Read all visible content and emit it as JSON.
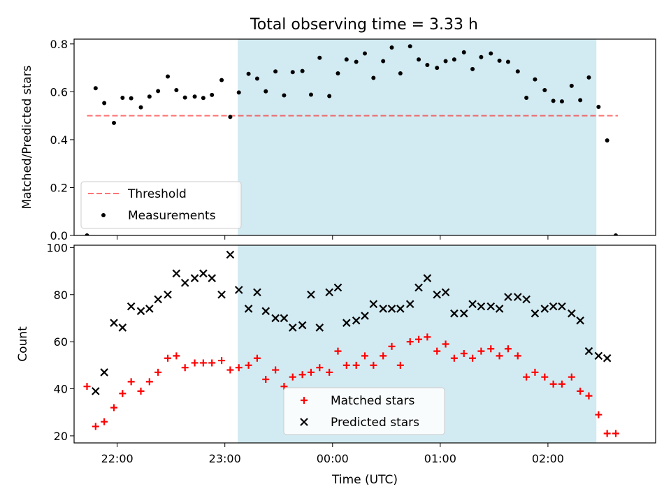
{
  "title": "Total observing time = 3.33 h",
  "colors": {
    "shade": "#add8e6",
    "threshold": "#ff0000",
    "matched": "#ff0000",
    "predicted": "#000000",
    "measurement": "#000000"
  },
  "chart_data": [
    {
      "type": "scatter",
      "panel": "top",
      "ylabel": "Matched/Predicted stars",
      "xlabel": "",
      "xlim": [
        21.6,
        27.0
      ],
      "ylim": [
        0,
        0.82
      ],
      "yticks": [
        0.0,
        0.2,
        0.4,
        0.6,
        0.8
      ],
      "ytick_labels": [
        "0.0",
        "0.2",
        "0.4",
        "0.6",
        "0.8"
      ],
      "shaded_interval": [
        23.12,
        26.45
      ],
      "threshold": {
        "name": "Threshold",
        "y": 0.5,
        "x": [
          21.72,
          26.65
        ]
      },
      "legend": {
        "placement": "lower-left",
        "entries": [
          "Threshold",
          "Measurements"
        ]
      },
      "series": [
        {
          "name": "Measurements",
          "marker": "dot",
          "x": [
            21.72,
            21.8,
            21.88,
            21.97,
            22.05,
            22.13,
            22.22,
            22.3,
            22.38,
            22.47,
            22.55,
            22.63,
            22.72,
            22.8,
            22.88,
            22.97,
            23.05,
            23.13,
            23.22,
            23.3,
            23.38,
            23.47,
            23.55,
            23.63,
            23.72,
            23.8,
            23.88,
            23.97,
            24.05,
            24.13,
            24.22,
            24.3,
            24.38,
            24.47,
            24.55,
            24.63,
            24.72,
            24.8,
            24.88,
            24.97,
            25.05,
            25.13,
            25.22,
            25.3,
            25.38,
            25.47,
            25.55,
            25.63,
            25.72,
            25.8,
            25.88,
            25.97,
            26.05,
            26.13,
            26.22,
            26.3,
            26.38,
            26.47,
            26.55,
            26.63
          ],
          "y": [
            0.0,
            0.615,
            0.553,
            0.47,
            0.575,
            0.573,
            0.535,
            0.58,
            0.603,
            0.664,
            0.607,
            0.576,
            0.58,
            0.574,
            0.587,
            0.649,
            0.495,
            0.597,
            0.675,
            0.655,
            0.602,
            0.685,
            0.585,
            0.682,
            0.687,
            0.588,
            0.742,
            0.582,
            0.677,
            0.735,
            0.725,
            0.76,
            0.658,
            0.728,
            0.785,
            0.677,
            0.79,
            0.735,
            0.712,
            0.7,
            0.728,
            0.735,
            0.765,
            0.695,
            0.745,
            0.76,
            0.73,
            0.725,
            0.685,
            0.575,
            0.652,
            0.607,
            0.562,
            0.56,
            0.625,
            0.565,
            0.66,
            0.537,
            0.397,
            0.0
          ]
        }
      ]
    },
    {
      "type": "scatter",
      "panel": "bottom",
      "ylabel": "Count",
      "xlabel": "Time (UTC)",
      "xlim": [
        21.6,
        27.0
      ],
      "ylim": [
        17,
        101
      ],
      "yticks": [
        20,
        40,
        60,
        80,
        100
      ],
      "ytick_labels": [
        "20",
        "40",
        "60",
        "80",
        "100"
      ],
      "xticks": [
        22,
        23,
        24,
        25,
        26
      ],
      "xtick_labels": [
        "22:00",
        "23:00",
        "00:00",
        "01:00",
        "02:00"
      ],
      "shaded_interval": [
        23.12,
        26.45
      ],
      "legend": {
        "placement": "lower-center",
        "entries": [
          "Matched stars",
          "Predicted stars"
        ]
      },
      "series": [
        {
          "name": "Matched stars",
          "marker": "plus",
          "x": [
            21.72,
            21.8,
            21.88,
            21.97,
            22.05,
            22.13,
            22.22,
            22.3,
            22.38,
            22.47,
            22.55,
            22.63,
            22.72,
            22.8,
            22.88,
            22.97,
            23.05,
            23.13,
            23.22,
            23.3,
            23.38,
            23.47,
            23.55,
            23.63,
            23.72,
            23.8,
            23.88,
            23.97,
            24.05,
            24.13,
            24.22,
            24.3,
            24.38,
            24.47,
            24.55,
            24.63,
            24.72,
            24.8,
            24.88,
            24.97,
            25.05,
            25.13,
            25.22,
            25.3,
            25.38,
            25.47,
            25.55,
            25.63,
            25.72,
            25.8,
            25.88,
            25.97,
            26.05,
            26.13,
            26.22,
            26.3,
            26.38,
            26.47,
            26.55,
            26.63
          ],
          "y": [
            41,
            24,
            26,
            32,
            38,
            43,
            39,
            43,
            47,
            53,
            54,
            49,
            51,
            51,
            51,
            52,
            48,
            49,
            50,
            53,
            44,
            48,
            41,
            45,
            46,
            47,
            49,
            47,
            56,
            50,
            50,
            54,
            50,
            54,
            58,
            50,
            60,
            61,
            62,
            56,
            59,
            53,
            55,
            53,
            56,
            57,
            54,
            57,
            54,
            45,
            47,
            45,
            42,
            42,
            45,
            39,
            37,
            29,
            21,
            21
          ]
        },
        {
          "name": "Predicted stars",
          "marker": "x",
          "x": [
            21.8,
            21.88,
            21.97,
            22.05,
            22.13,
            22.22,
            22.3,
            22.38,
            22.47,
            22.55,
            22.63,
            22.72,
            22.8,
            22.88,
            22.97,
            23.05,
            23.13,
            23.22,
            23.3,
            23.38,
            23.47,
            23.55,
            23.63,
            23.72,
            23.8,
            23.88,
            23.97,
            24.05,
            24.13,
            24.22,
            24.3,
            24.38,
            24.47,
            24.55,
            24.63,
            24.72,
            24.8,
            24.88,
            24.97,
            25.05,
            25.13,
            25.22,
            25.3,
            25.38,
            25.47,
            25.55,
            25.63,
            25.72,
            25.8,
            25.88,
            25.97,
            26.05,
            26.13,
            26.22,
            26.3,
            26.38,
            26.47,
            26.55
          ],
          "y": [
            39,
            47,
            68,
            66,
            75,
            73,
            74,
            78,
            80,
            89,
            85,
            87,
            89,
            87,
            80,
            97,
            82,
            74,
            81,
            73,
            70,
            70,
            66,
            67,
            80,
            66,
            81,
            83,
            68,
            69,
            71,
            76,
            74,
            74,
            74,
            76,
            83,
            87,
            80,
            81,
            72,
            72,
            76,
            75,
            75,
            74,
            79,
            79,
            78,
            72,
            74,
            75,
            75,
            72,
            69,
            56,
            54,
            53
          ]
        }
      ]
    }
  ]
}
